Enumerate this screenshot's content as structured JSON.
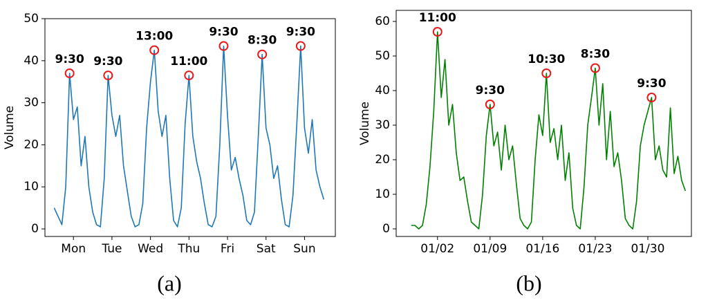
{
  "chart_data": [
    {
      "type": "line",
      "ylabel": "Volume",
      "caption": "(a)",
      "color": "#1f77b4",
      "annotation_color": "#e8191b",
      "xlim": [
        -0.74,
        6.8
      ],
      "ylim": [
        -1.8,
        50
      ],
      "xticks": [
        {
          "value": 0,
          "label": "Mon"
        },
        {
          "value": 1,
          "label": "Tue"
        },
        {
          "value": 2,
          "label": "Wed"
        },
        {
          "value": 3,
          "label": "Thu"
        },
        {
          "value": 4,
          "label": "Fri"
        },
        {
          "value": 5,
          "label": "Sat"
        },
        {
          "value": 6,
          "label": "Sun"
        }
      ],
      "yticks": [
        0,
        10,
        20,
        30,
        40,
        50
      ],
      "x": [
        -0.5,
        -0.4,
        -0.3,
        -0.2,
        -0.1,
        0,
        0.1,
        0.2,
        0.3,
        0.4,
        0.5,
        0.6,
        0.7,
        0.8,
        0.9,
        1,
        1.1,
        1.2,
        1.3,
        1.4,
        1.5,
        1.6,
        1.7,
        1.8,
        1.9,
        2,
        2.1,
        2.2,
        2.3,
        2.4,
        2.5,
        2.6,
        2.7,
        2.8,
        2.9,
        3,
        3.1,
        3.2,
        3.3,
        3.4,
        3.5,
        3.6,
        3.7,
        3.8,
        3.9,
        4,
        4.1,
        4.2,
        4.3,
        4.4,
        4.5,
        4.6,
        4.7,
        4.8,
        4.9,
        5,
        5.1,
        5.2,
        5.3,
        5.4,
        5.5,
        5.6,
        5.7,
        5.8,
        5.9,
        6,
        6.1,
        6.2,
        6.3,
        6.4,
        6.5
      ],
      "values": [
        5,
        3,
        1,
        10,
        37,
        26,
        29,
        15,
        22,
        10,
        4,
        1,
        0.5,
        12,
        36.5,
        27,
        22,
        27,
        15,
        9,
        3,
        0.5,
        1,
        6,
        24,
        35,
        42.5,
        28,
        22,
        27,
        12,
        2,
        0.5,
        5,
        25,
        36.5,
        22,
        16,
        12,
        6,
        1,
        0.5,
        3,
        20,
        43.5,
        27,
        14,
        17,
        12,
        8,
        2,
        1,
        4,
        22,
        41.5,
        24,
        20,
        12,
        15,
        7,
        1,
        0.5,
        8,
        25,
        43.5,
        24,
        18,
        26,
        14,
        10,
        7
      ],
      "annotations": [
        {
          "x": -0.1,
          "y": 37,
          "label": "9:30"
        },
        {
          "x": 0.9,
          "y": 36.5,
          "label": "9:30"
        },
        {
          "x": 2.1,
          "y": 42.5,
          "label": "13:00"
        },
        {
          "x": 3.0,
          "y": 36.5,
          "label": "11:00"
        },
        {
          "x": 3.9,
          "y": 43.5,
          "label": "9:30"
        },
        {
          "x": 4.9,
          "y": 41.5,
          "label": "8:30"
        },
        {
          "x": 5.9,
          "y": 43.5,
          "label": "9:30"
        }
      ]
    },
    {
      "type": "line",
      "ylabel": "Volume",
      "caption": "(b)",
      "color": "#008000",
      "annotation_color": "#e8191b",
      "xlim": [
        -3.5,
        35.8
      ],
      "ylim": [
        -2.2,
        63.2
      ],
      "xticks": [
        {
          "value": 2,
          "label": "01/02"
        },
        {
          "value": 9,
          "label": "01/09"
        },
        {
          "value": 16,
          "label": "01/16"
        },
        {
          "value": 23,
          "label": "01/23"
        },
        {
          "value": 30,
          "label": "01/30"
        }
      ],
      "yticks": [
        0,
        10,
        20,
        30,
        40,
        50,
        60
      ],
      "x": [
        -1.5,
        -1,
        -0.5,
        0,
        0.5,
        1,
        1.5,
        2,
        2.5,
        3,
        3.5,
        4,
        4.5,
        5,
        5.5,
        6,
        6.5,
        7,
        7.5,
        8,
        8.5,
        9,
        9.5,
        10,
        10.5,
        11,
        11.5,
        12,
        12.5,
        13,
        13.5,
        14,
        14.5,
        15,
        15.5,
        16,
        16.5,
        17,
        17.5,
        18,
        18.5,
        19,
        19.5,
        20,
        20.5,
        21,
        21.5,
        22,
        22.5,
        23,
        23.5,
        24,
        24.5,
        25,
        25.5,
        26,
        26.5,
        27,
        27.5,
        28,
        28.5,
        29,
        29.5,
        30,
        30.5,
        31,
        31.5,
        32,
        32.5,
        33,
        33.5,
        34,
        34.5,
        35
      ],
      "values": [
        1,
        1,
        0,
        1,
        7,
        18,
        34,
        57,
        38,
        49,
        30,
        36,
        22,
        14,
        15,
        8,
        2,
        1,
        0,
        10,
        27,
        36,
        24,
        28,
        17,
        30,
        20,
        24,
        13,
        3,
        1,
        0,
        2,
        20,
        33,
        27,
        45,
        25,
        29,
        20,
        30,
        14,
        22,
        6,
        1,
        0,
        12,
        30,
        38,
        46.5,
        30,
        42,
        20,
        34,
        18,
        22,
        14,
        3,
        1,
        0,
        8,
        24,
        30,
        34,
        38,
        20,
        24,
        17,
        15,
        35,
        16,
        21,
        14,
        11
      ],
      "annotations": [
        {
          "x": 2,
          "y": 57,
          "label": "11:00"
        },
        {
          "x": 9,
          "y": 36,
          "label": "9:30"
        },
        {
          "x": 16.5,
          "y": 45,
          "label": "10:30"
        },
        {
          "x": 23,
          "y": 46.5,
          "label": "8:30"
        },
        {
          "x": 30.5,
          "y": 38,
          "label": "9:30"
        }
      ]
    }
  ]
}
